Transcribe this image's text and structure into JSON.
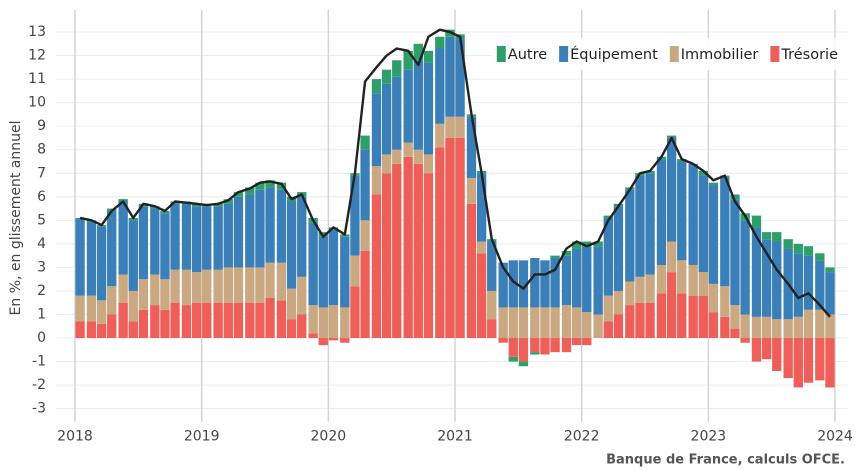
{
  "chart_data": {
    "type": "stacked-bar-line",
    "y_label": "En %, en glissement annuel",
    "source": "Banque de France, calculs OFCE.",
    "x": [
      2018.04,
      2018.13,
      2018.21,
      2018.29,
      2018.38,
      2018.46,
      2018.54,
      2018.63,
      2018.71,
      2018.79,
      2018.88,
      2018.96,
      2019.04,
      2019.13,
      2019.21,
      2019.29,
      2019.38,
      2019.46,
      2019.54,
      2019.63,
      2019.71,
      2019.79,
      2019.88,
      2019.96,
      2020.04,
      2020.13,
      2020.21,
      2020.29,
      2020.38,
      2020.46,
      2020.54,
      2020.63,
      2020.71,
      2020.79,
      2020.88,
      2020.96,
      2021.04,
      2021.13,
      2021.21,
      2021.29,
      2021.38,
      2021.46,
      2021.54,
      2021.63,
      2021.71,
      2021.79,
      2021.88,
      2021.96,
      2022.04,
      2022.13,
      2022.21,
      2022.29,
      2022.38,
      2022.46,
      2022.54,
      2022.63,
      2022.71,
      2022.79,
      2022.88,
      2022.96,
      2023.04,
      2023.13,
      2023.21,
      2023.29,
      2023.38,
      2023.46,
      2023.54,
      2023.63,
      2023.71,
      2023.79,
      2023.88,
      2023.96
    ],
    "series": [
      {
        "name": "Autre",
        "color": "#2e9e6b",
        "values": [
          0.05,
          0.05,
          0.05,
          0.1,
          0.1,
          0.1,
          0.1,
          0.1,
          0.1,
          0.1,
          0.1,
          0.1,
          0.1,
          0.1,
          0.2,
          0.2,
          0.3,
          0.3,
          0.3,
          0.3,
          0.2,
          0.2,
          0.2,
          0.2,
          0.1,
          0.1,
          0.1,
          0.6,
          0.6,
          0.6,
          0.7,
          0.8,
          0.7,
          0.5,
          0.5,
          0.3,
          0.2,
          0.1,
          0.1,
          0.1,
          0.0,
          -0.2,
          -0.2,
          -0.1,
          0.0,
          0.1,
          0.2,
          0.3,
          0.2,
          0.2,
          0.1,
          0.1,
          0.1,
          0.1,
          0.1,
          0.1,
          0.1,
          0.1,
          0.0,
          0.2,
          0.1,
          0.1,
          0.2,
          0.3,
          0.5,
          0.3,
          0.4,
          0.4,
          0.4,
          0.4,
          0.3,
          0.2
        ]
      },
      {
        "name": "Équipement",
        "color": "#3a7fb8",
        "values": [
          3.25,
          3.15,
          3.15,
          3.2,
          3.1,
          3.0,
          3.1,
          2.8,
          2.8,
          2.8,
          2.8,
          2.8,
          2.7,
          2.7,
          2.7,
          3.0,
          3.1,
          3.3,
          3.2,
          3.1,
          3.7,
          3.4,
          3.5,
          3.0,
          3.2,
          3.0,
          3.4,
          3.0,
          3.1,
          3.0,
          3.1,
          3.1,
          3.8,
          3.9,
          3.2,
          3.4,
          3.3,
          2.6,
          2.9,
          2.1,
          1.9,
          2.0,
          2.0,
          2.1,
          2.0,
          2.1,
          2.1,
          2.5,
          2.8,
          2.9,
          3.3,
          3.6,
          3.9,
          4.3,
          4.3,
          4.5,
          4.4,
          4.2,
          4.3,
          4.1,
          4.2,
          4.6,
          4.5,
          4.0,
          3.8,
          3.3,
          3.3,
          3.0,
          2.7,
          2.3,
          2.1,
          1.8
        ]
      },
      {
        "name": "Immobilier",
        "color": "#c9a882",
        "values": [
          1.1,
          1.1,
          1.0,
          1.2,
          1.2,
          1.3,
          1.3,
          1.3,
          1.3,
          1.4,
          1.5,
          1.3,
          1.4,
          1.4,
          1.5,
          1.5,
          1.5,
          1.5,
          1.5,
          1.6,
          1.3,
          1.6,
          1.2,
          1.3,
          1.4,
          1.3,
          1.3,
          1.3,
          1.2,
          0.8,
          0.6,
          0.6,
          0.6,
          0.8,
          1.0,
          0.9,
          0.9,
          1.1,
          0.5,
          1.2,
          1.3,
          1.3,
          1.3,
          1.3,
          1.3,
          1.3,
          1.4,
          1.3,
          1.1,
          1.0,
          1.1,
          1.0,
          1.0,
          1.1,
          1.2,
          1.2,
          1.3,
          1.4,
          1.3,
          1.0,
          1.2,
          1.3,
          1.0,
          1.0,
          0.9,
          0.9,
          0.8,
          0.8,
          0.9,
          1.2,
          1.2,
          1.0
        ]
      },
      {
        "name": "Trésorie",
        "color": "#ef5f5a",
        "values": [
          0.7,
          0.7,
          0.6,
          1.0,
          1.5,
          0.7,
          1.2,
          1.4,
          1.2,
          1.5,
          1.4,
          1.5,
          1.5,
          1.5,
          1.5,
          1.5,
          1.5,
          1.5,
          1.7,
          1.6,
          0.8,
          1.0,
          0.2,
          -0.3,
          -0.1,
          -0.2,
          2.2,
          3.7,
          6.1,
          7.0,
          7.4,
          7.7,
          7.4,
          7.0,
          8.1,
          8.5,
          8.5,
          5.7,
          3.6,
          0.8,
          -0.2,
          -0.8,
          -1.0,
          -0.6,
          -0.7,
          -0.6,
          -0.6,
          -0.3,
          -0.3,
          0.0,
          0.7,
          1.0,
          1.4,
          1.5,
          1.5,
          1.9,
          2.8,
          1.9,
          1.8,
          1.8,
          1.1,
          0.9,
          0.4,
          -0.2,
          -1.0,
          -0.9,
          -1.4,
          -1.7,
          -2.1,
          -1.9,
          -1.8,
          -2.1
        ]
      }
    ],
    "line": {
      "color": "#222222",
      "values": [
        5.1,
        5.0,
        4.8,
        5.4,
        5.8,
        5.1,
        5.7,
        5.6,
        5.4,
        5.8,
        5.75,
        5.7,
        5.65,
        5.7,
        5.85,
        6.2,
        6.35,
        6.6,
        6.65,
        6.55,
        5.9,
        6.1,
        5.0,
        4.3,
        4.7,
        4.4,
        7.0,
        10.9,
        11.5,
        12.0,
        12.3,
        12.2,
        11.6,
        12.8,
        13.1,
        13.0,
        12.8,
        9.5,
        7.0,
        4.2,
        3.0,
        2.4,
        2.1,
        2.7,
        2.7,
        2.9,
        3.8,
        4.1,
        3.9,
        4.1,
        5.0,
        5.6,
        6.3,
        7.0,
        7.1,
        7.7,
        8.5,
        7.6,
        7.4,
        7.1,
        6.7,
        6.9,
        5.8,
        5.2,
        4.3,
        3.6,
        2.9,
        2.3,
        1.7,
        1.9,
        1.4,
        0.9
      ]
    },
    "xlim": [
      2017.85,
      2024.1
    ],
    "xticks": [
      2018,
      2019,
      2020,
      2021,
      2022,
      2023,
      2024
    ],
    "ylim": [
      -3.3,
      13.6
    ],
    "yticks": [
      -3,
      -2,
      -1,
      0,
      1,
      2,
      3,
      4,
      5,
      6,
      7,
      8,
      9,
      10,
      11,
      12,
      13
    ],
    "grid": true,
    "legend": "top-right"
  }
}
